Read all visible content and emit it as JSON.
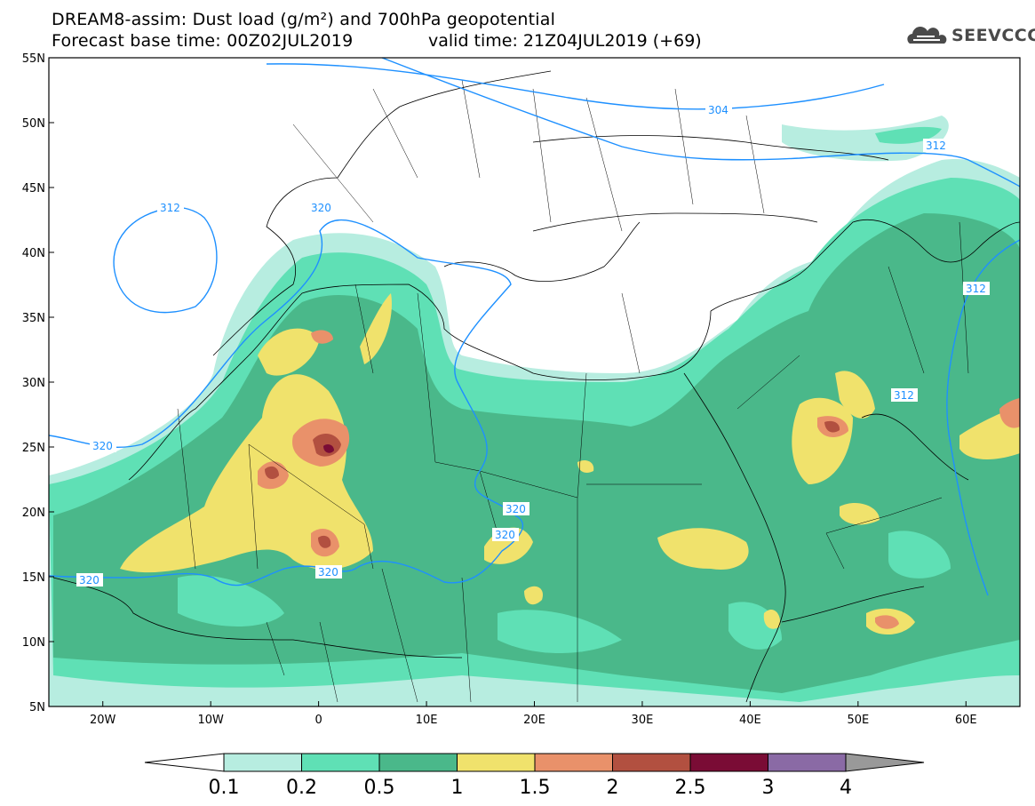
{
  "header": {
    "title_line_1": "DREAM8-assim: Dust load (g/m²) and 700hPa geopotential",
    "title_line_2": "Forecast base time: 00Z02JUL2019",
    "valid_time": "valid time: 21Z04JUL2019 (+69)",
    "logo_text": "SEEVCCC"
  },
  "map": {
    "lat_labels": [
      "55N",
      "50N",
      "45N",
      "40N",
      "35N",
      "30N",
      "25N",
      "20N",
      "15N",
      "10N",
      "5N"
    ],
    "lat_values": [
      55,
      50,
      45,
      40,
      35,
      30,
      25,
      20,
      15,
      10,
      5
    ],
    "lon_labels": [
      "20W",
      "10W",
      "0",
      "10E",
      "20E",
      "30E",
      "40E",
      "50E",
      "60E"
    ],
    "lon_values": [
      -20,
      -10,
      0,
      10,
      20,
      30,
      40,
      50,
      60
    ],
    "lon_range": [
      -25,
      65
    ],
    "lat_range": [
      5,
      55
    ],
    "geopotential_contour_labels": [
      "304",
      "312",
      "320",
      "312",
      "312",
      "320",
      "320",
      "320",
      "320",
      "312"
    ],
    "colors": {
      "land_border": "#000000",
      "contour_line": "#1e90ff",
      "dust_0_1": "#b7ede0",
      "dust_0_2": "#5fe0b5",
      "dust_0_5": "#4ab88a",
      "dust_1": "#f0e26c",
      "dust_1_5": "#e9916a",
      "dust_2": "#b25040",
      "dust_2_5": "#7a0c35",
      "dust_3": "#8a6aa5",
      "dust_4": "#999999"
    }
  },
  "colorbar": {
    "labels": [
      "0.1",
      "0.2",
      "0.5",
      "1",
      "1.5",
      "2",
      "2.5",
      "3",
      "4"
    ],
    "colors": [
      "#b7ede0",
      "#5fe0b5",
      "#4ab88a",
      "#f0e26c",
      "#e9916a",
      "#b25040",
      "#7a0c35",
      "#8a6aa5"
    ]
  }
}
